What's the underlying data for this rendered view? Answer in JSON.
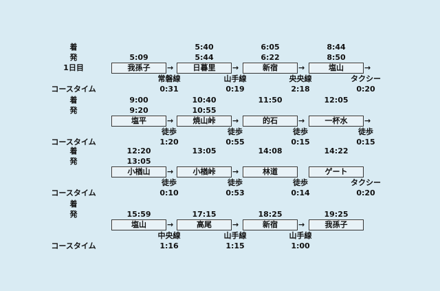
{
  "labels": {
    "arrive": "着",
    "depart": "発",
    "course_time": "コースタイム"
  },
  "sections": [
    {
      "day": "1日目",
      "stations": [
        "我孫子",
        "日暮里",
        "新宿",
        "塩山"
      ],
      "arrive": [
        "",
        "5:40",
        "6:05",
        "8:44"
      ],
      "depart": [
        "5:09",
        "5:44",
        "6:22",
        "8:50"
      ],
      "modes": [
        "常磐線",
        "山手線",
        "央央線",
        "タクシー"
      ],
      "times": [
        "0:31",
        "0:19",
        "2:18",
        "0:20"
      ],
      "arrows": [
        true,
        true,
        true,
        true
      ]
    },
    {
      "day": "",
      "stations": [
        "塩平",
        "焼山峠",
        "的石",
        "一杯水"
      ],
      "arrive": [
        "9:00",
        "10:40",
        "11:50",
        "12:05"
      ],
      "depart": [
        "9:20",
        "10:55",
        "",
        ""
      ],
      "modes": [
        "徒歩",
        "徒歩",
        "徒歩",
        "徒歩"
      ],
      "times": [
        "1:20",
        "0:55",
        "0:15",
        "0:15"
      ],
      "arrows": [
        true,
        true,
        true,
        true
      ]
    },
    {
      "day": "",
      "stations": [
        "小楢山",
        "小楢峠",
        "林道",
        "ゲート"
      ],
      "arrive": [
        "12:20",
        "13:05",
        "14:08",
        "14:22"
      ],
      "depart": [
        "13:05",
        "",
        "",
        ""
      ],
      "modes": [
        "徒歩",
        "徒歩",
        "徒歩",
        "タクシー"
      ],
      "times": [
        "0:10",
        "0:53",
        "0:14",
        "0:20"
      ],
      "arrows": [
        true,
        true,
        false,
        false
      ]
    },
    {
      "day": "",
      "stations": [
        "塩山",
        "高尾",
        "新宿",
        "我孫子"
      ],
      "arrive": [
        "",
        "",
        "",
        ""
      ],
      "depart": [
        "15:59",
        "17:15",
        "18:25",
        "19:25"
      ],
      "modes": [
        "中央線",
        "山手線",
        "山手線",
        ""
      ],
      "times": [
        "1:16",
        "1:15",
        "1:00",
        ""
      ],
      "arrows": [
        true,
        true,
        true,
        false
      ]
    }
  ],
  "arrow_glyph": "→"
}
